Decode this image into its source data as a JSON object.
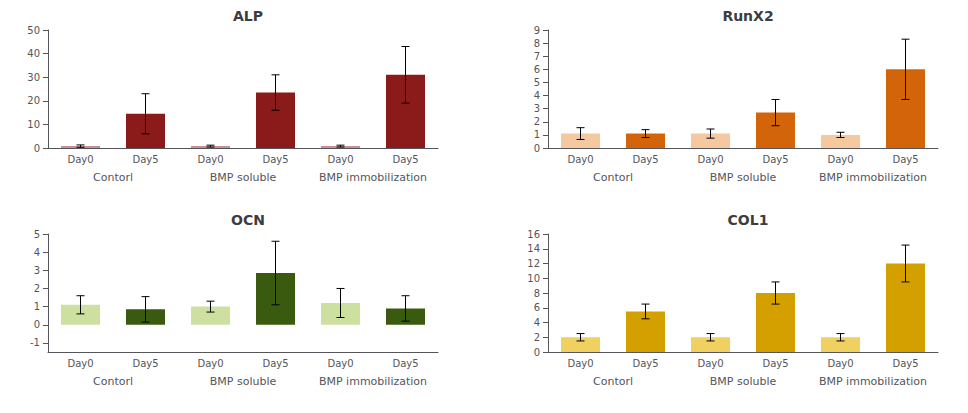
{
  "chart_data": [
    {
      "type": "bar",
      "title": "ALP",
      "categories": [
        "Contorl",
        "BMP soluble",
        "BMP immobilization"
      ],
      "series": [
        {
          "name": "Day0",
          "color": "#c89090",
          "values": [
            0.8,
            0.8,
            0.8
          ],
          "errors": [
            0.5,
            0.4,
            0.4
          ]
        },
        {
          "name": "Day5",
          "color": "#8b1a1a",
          "values": [
            14.5,
            23.5,
            31.0
          ],
          "errors": [
            8.5,
            7.5,
            12.0
          ]
        }
      ],
      "ylim": [
        0,
        50
      ],
      "yticks": [
        0,
        10,
        20,
        30,
        40,
        50
      ],
      "grid": false
    },
    {
      "type": "bar",
      "title": "RunX2",
      "categories": [
        "Contorl",
        "BMP soluble",
        "BMP immobilization"
      ],
      "series": [
        {
          "name": "Day0",
          "color": "#f5c9a0",
          "values": [
            1.1,
            1.1,
            1.0
          ],
          "errors": [
            0.45,
            0.35,
            0.2
          ]
        },
        {
          "name": "Day5",
          "color": "#d4640a",
          "values": [
            1.1,
            2.7,
            6.0
          ],
          "errors": [
            0.3,
            1.0,
            2.3
          ]
        }
      ],
      "ylim": [
        0,
        9
      ],
      "yticks": [
        0,
        1,
        2,
        3,
        4,
        5,
        6,
        7,
        8,
        9
      ],
      "grid": false
    },
    {
      "type": "bar",
      "title": "OCN",
      "categories": [
        "Contorl",
        "BMP soluble",
        "BMP immobilization"
      ],
      "series": [
        {
          "name": "Day0",
          "color": "#cee0a0",
          "values": [
            1.1,
            1.0,
            1.2
          ],
          "errors": [
            0.5,
            0.3,
            0.8
          ]
        },
        {
          "name": "Day5",
          "color": "#3a5a10",
          "values": [
            0.85,
            2.85,
            0.9
          ],
          "errors": [
            0.7,
            1.75,
            0.7
          ]
        }
      ],
      "ylim": [
        -1.5,
        5
      ],
      "yticks": [
        -1,
        0,
        1,
        2,
        3,
        4,
        5
      ],
      "grid": false
    },
    {
      "type": "bar",
      "title": "COL1",
      "categories": [
        "Contorl",
        "BMP soluble",
        "BMP immobilization"
      ],
      "series": [
        {
          "name": "Day0",
          "color": "#f0d060",
          "values": [
            2.0,
            2.0,
            2.0
          ],
          "errors": [
            0.5,
            0.5,
            0.5
          ]
        },
        {
          "name": "Day5",
          "color": "#d4a000",
          "values": [
            5.5,
            8.0,
            12.0
          ],
          "errors": [
            1.0,
            1.5,
            2.5
          ]
        }
      ],
      "ylim": [
        0,
        16
      ],
      "yticks": [
        0,
        2,
        4,
        6,
        8,
        10,
        12,
        14,
        16
      ],
      "grid": false
    }
  ]
}
